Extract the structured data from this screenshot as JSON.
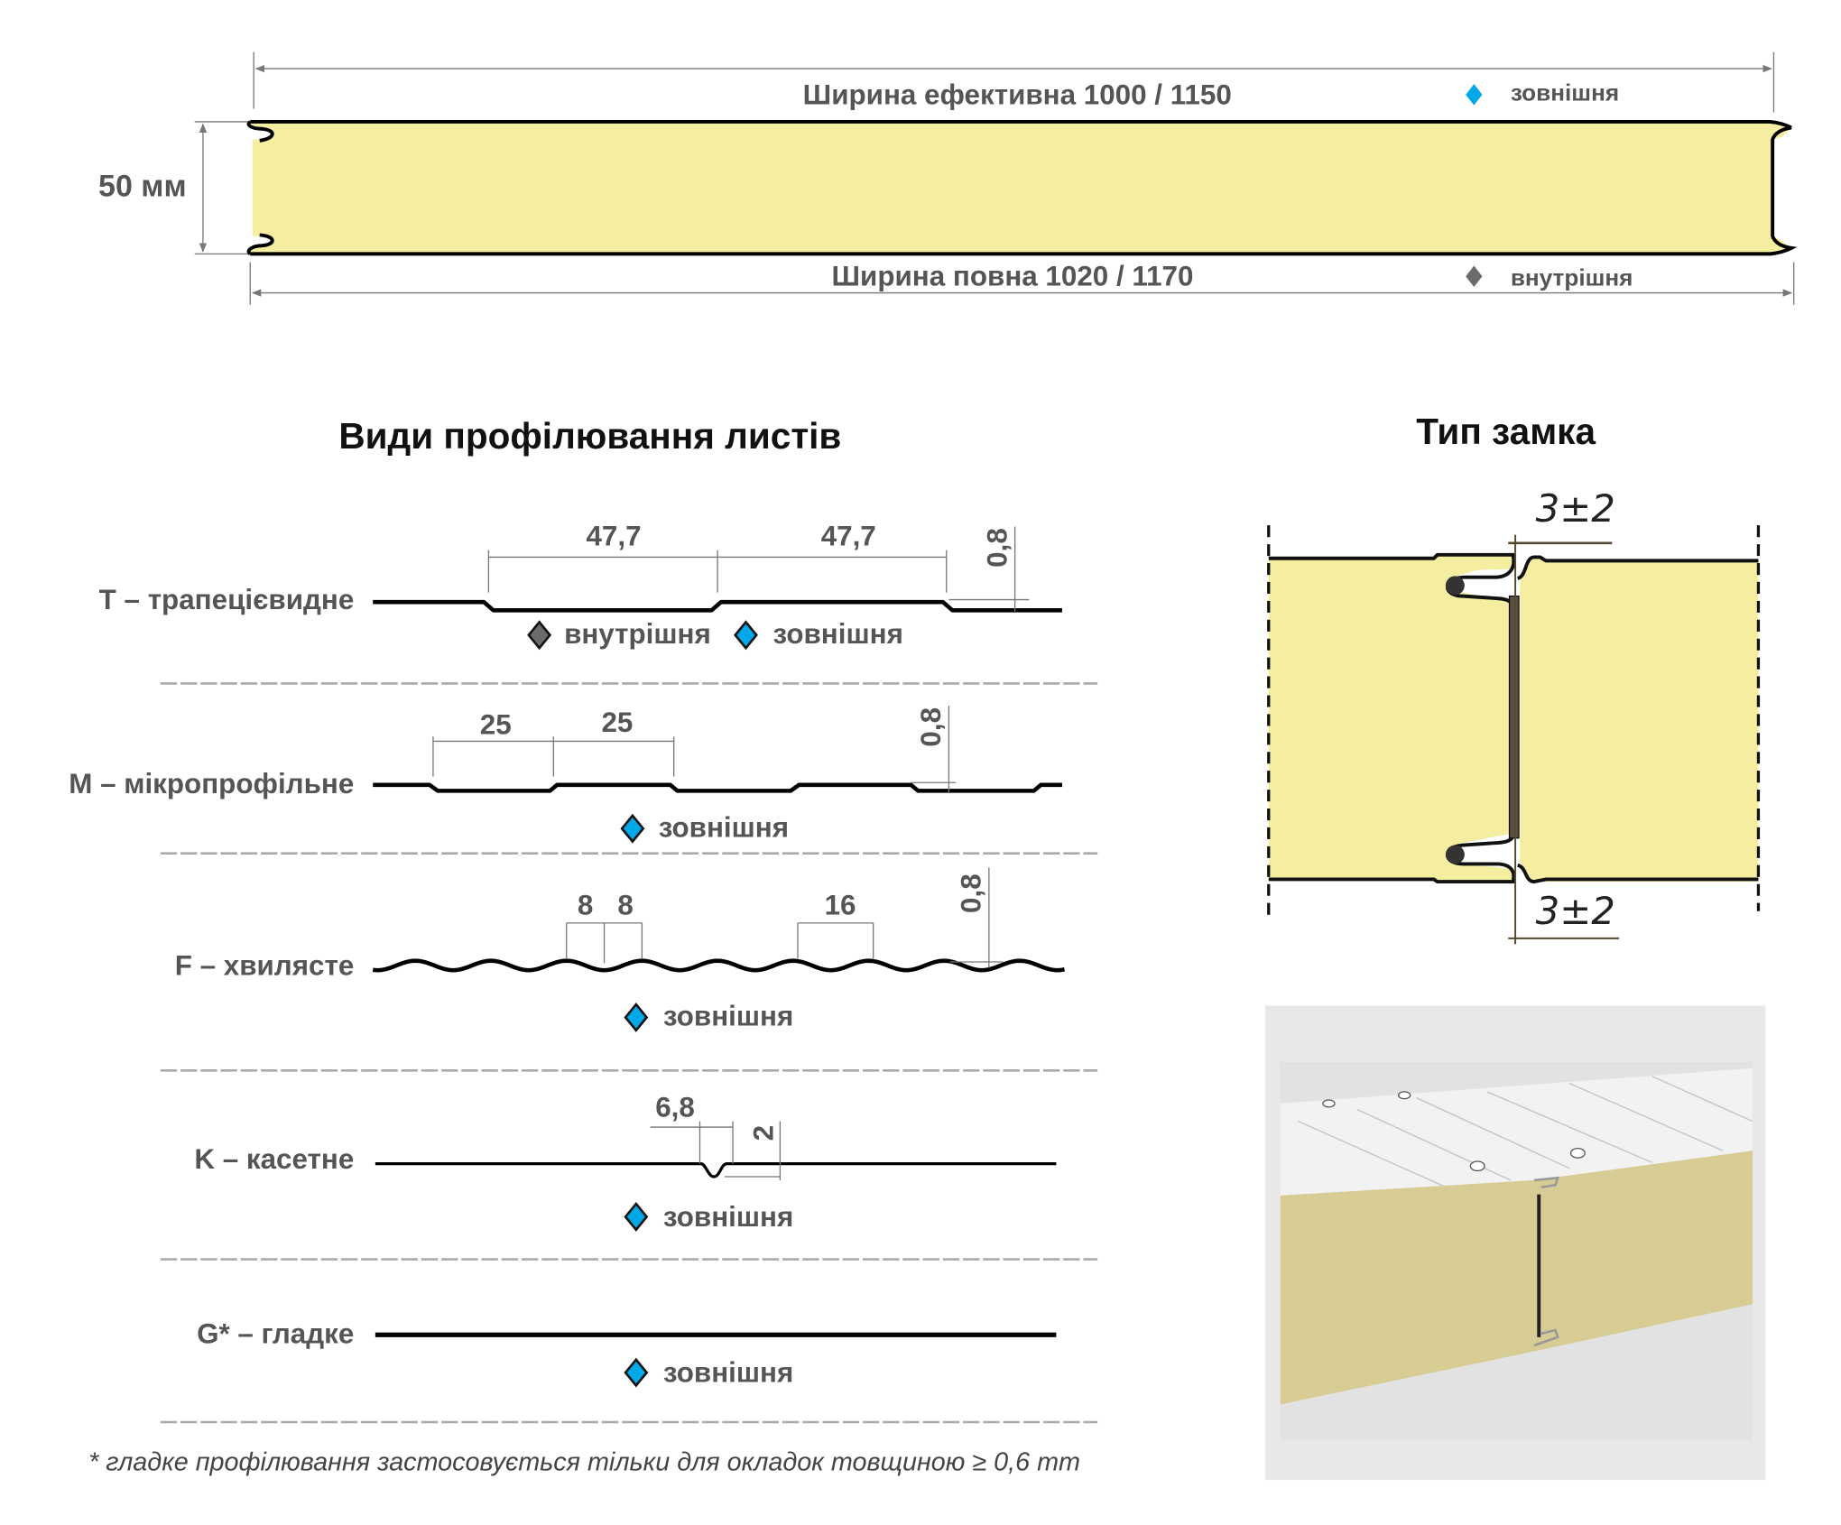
{
  "colors": {
    "foam": "#f5eda0",
    "outer": "#00a8e8",
    "inner": "#6b6b6b",
    "text": "#555555",
    "photo_foam": "#d6cc94"
  },
  "top": {
    "effective_width": "Ширина ефективна 1000 / 1150",
    "full_width": "Ширина повна 1020 / 1170",
    "thickness": "50 мм",
    "legend_outer": "зовнішня",
    "legend_inner": "внутрішня"
  },
  "profiles_title": "Види профілювання листів",
  "lock_title": "Тип замка",
  "lock_dims": {
    "top": "3±2",
    "bottom": "3±2"
  },
  "profiles": [
    {
      "label": "T – трапецієвидне",
      "dims": [
        "47,7",
        "47,7",
        "0,8"
      ],
      "legend": [
        "внутрішня",
        "зовнішня"
      ]
    },
    {
      "label": "M – мікропрофільне",
      "dims": [
        "25",
        "25",
        "0,8"
      ],
      "legend": [
        "зовнішня"
      ]
    },
    {
      "label": "F – хвилясте",
      "dims": [
        "8",
        "8",
        "16",
        "0,8"
      ],
      "legend": [
        "зовнішня"
      ]
    },
    {
      "label": "K – касетне",
      "dims": [
        "6,8",
        "2"
      ],
      "legend": [
        "зовнішня"
      ]
    },
    {
      "label": "G* – гладке",
      "dims": [],
      "legend": [
        "зовнішня"
      ]
    }
  ],
  "footnote": "* гладке профілювання застосовується тільки для окладок товщиною ≥ 0,6 mm"
}
